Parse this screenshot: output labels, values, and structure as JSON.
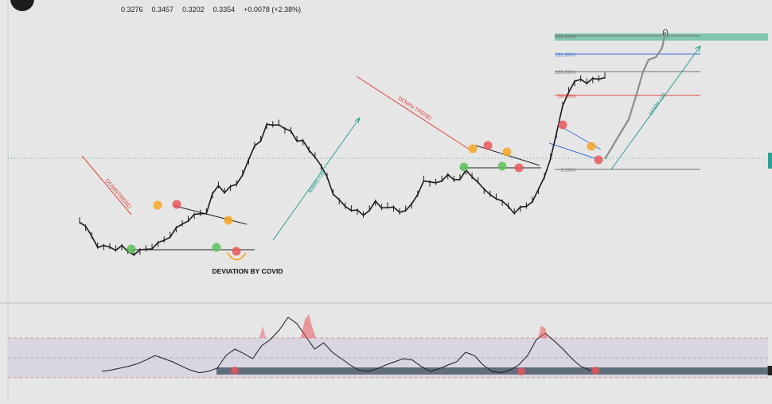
{
  "ohlc": {
    "open": "0.3276",
    "high": "0.3457",
    "low": "0.3202",
    "close": "0.3354",
    "change": "+0.0078 (+2.38%)"
  },
  "colors": {
    "background": "#e6e6e6",
    "price": "#1a1a1a",
    "projection": "#8c8c8c",
    "trendline_red": "#e0453c",
    "trendline_teal": "#2a9d8f",
    "fib_blue": "#3a6fd8",
    "fib_red": "#e0453c",
    "fib_gray": "#707070",
    "fib_top_band": "#6fbfa6",
    "marker_green": "#5cbf5c",
    "marker_orange": "#f5a623",
    "marker_red": "#e8555a",
    "osc_band": "#cfc8dc",
    "osc_base": "#4a5a6a"
  },
  "labels": {
    "downtrend_left": "DOWNTREND",
    "markup_left": "MARK-UP",
    "downtrend_mid": "DOWN-TREND",
    "markup_right": "MARK-UP",
    "deviation": "DEVIATION BY COVID"
  },
  "chart_data": [
    {
      "type": "line",
      "series": [
        {
          "values": [
            0.22,
            0.17,
            0.12,
            0.05,
            0.04,
            0.045,
            0.03,
            0.04,
            0.015,
            0.0,
            0.01,
            0.03,
            0.04,
            0.06,
            0.09,
            0.12,
            0.16,
            0.2,
            0.23,
            0.25,
            0.27,
            0.28,
            0.39,
            0.46,
            0.42,
            0.44,
            0.47,
            0.54,
            0.62,
            0.73,
            0.77,
            0.86,
            0.87,
            0.88,
            0.83,
            0.83,
            0.77,
            0.75,
            0.7,
            0.66,
            0.58,
            0.52,
            0.41,
            0.35,
            0.32,
            0.3,
            0.28,
            0.26,
            0.3,
            0.34,
            0.31,
            0.32,
            0.3,
            0.28,
            0.3,
            0.32,
            0.4,
            0.5,
            0.47,
            0.48,
            0.5,
            0.52,
            0.5,
            0.51,
            0.55,
            0.52,
            0.49,
            0.42,
            0.4,
            0.38,
            0.34,
            0.32,
            0.28,
            0.3,
            0.32,
            0.36,
            0.42,
            0.52,
            0.65,
            0.8,
            1.0,
            1.1,
            1.15,
            1.18,
            1.16,
            1.17,
            1.18,
            1.2
          ]
        }
      ],
      "annotations": {
        "fibonacci_levels": [
          {
            "label": "261.80%",
            "level": 2.618
          },
          {
            "label": "161.80%",
            "level": 1.618
          },
          {
            "label": "100.00%",
            "level": 1.0
          },
          {
            "label": "50.00%",
            "level": 0.5
          },
          {
            "label": "0.00%",
            "level": 0.0
          }
        ]
      }
    },
    {
      "type": "line",
      "series": [
        {
          "values": [
            0.1,
            0.12,
            0.15,
            0.18,
            0.22,
            0.28,
            0.35,
            0.3,
            0.25,
            0.18,
            0.12,
            0.08,
            0.1,
            0.15,
            0.35,
            0.45,
            0.38,
            0.3,
            0.5,
            0.6,
            0.75,
            0.95,
            0.85,
            0.65,
            0.45,
            0.55,
            0.4,
            0.3,
            0.2,
            0.12,
            0.1,
            0.14,
            0.2,
            0.25,
            0.3,
            0.28,
            0.18,
            0.1,
            0.14,
            0.2,
            0.25,
            0.4,
            0.35,
            0.2,
            0.1,
            0.08,
            0.12,
            0.2,
            0.35,
            0.6,
            0.7,
            0.58,
            0.45,
            0.3,
            0.18,
            0.12,
            0.08
          ]
        }
      ]
    }
  ]
}
